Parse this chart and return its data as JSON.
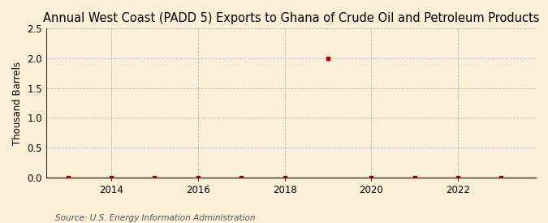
{
  "title": "Annual West Coast (PADD 5) Exports to Ghana of Crude Oil and Petroleum Products",
  "ylabel": "Thousand Barrels",
  "source": "Source: U.S. Energy Information Administration",
  "background_color": "#faefd7",
  "plot_background_color": "#faefd7",
  "data_points": {
    "2013": 0,
    "2014": 0,
    "2015": 0,
    "2016": 0,
    "2017": 0,
    "2018": 0,
    "2019": 2.0,
    "2020": 0,
    "2021": 0,
    "2022": 0,
    "2023": 0
  },
  "xlim": [
    2012.5,
    2023.8
  ],
  "ylim": [
    0,
    2.5
  ],
  "yticks": [
    0.0,
    0.5,
    1.0,
    1.5,
    2.0,
    2.5
  ],
  "xticks": [
    2014,
    2016,
    2018,
    2020,
    2022
  ],
  "marker_color": "#aa0000",
  "grid_color": "#bbbbbb",
  "axis_color": "#333333",
  "title_fontsize": 10.5,
  "label_fontsize": 8.5,
  "tick_fontsize": 8.5,
  "source_fontsize": 7.5
}
